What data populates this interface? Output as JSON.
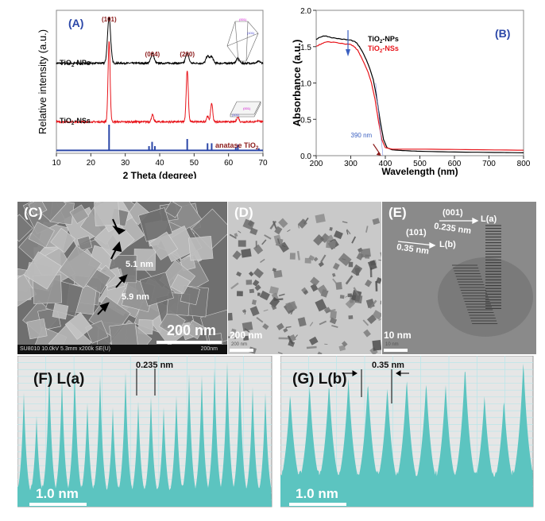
{
  "colors": {
    "black": "#000000",
    "red": "#e8151b",
    "blue": "#2b47a8",
    "label_red": "#8b1a1a",
    "teal": "#5cc4c0",
    "grid": "#b8e6ea"
  },
  "panel_labels": {
    "a": "(A)",
    "b": "(B)",
    "c": "(C)",
    "d": "(D)",
    "e": "(E)",
    "f": "(F) L(a)",
    "g": "(G) L(b)"
  },
  "chart_data": [
    {
      "type": "line",
      "id": "A",
      "title": "(A)",
      "xlabel": "2 Theta (degree)",
      "ylabel": "Relative intensity (a.u.)",
      "xlim": [
        10,
        70
      ],
      "xticks": [
        10,
        20,
        30,
        40,
        50,
        60,
        70
      ],
      "peak_labels": [
        {
          "x": 25.3,
          "text": "(101)"
        },
        {
          "x": 37.9,
          "text": "(004)"
        },
        {
          "x": 48.0,
          "text": "(200)"
        }
      ],
      "crystal_labels": {
        "np_top": "(001)",
        "np_side": "(101)",
        "ns_top": "(001)",
        "ns_side": "(101)"
      },
      "series": [
        {
          "name": "TiO2-NPs",
          "label_main": "TiO",
          "label_sub": "2",
          "label_rest": "-NPs",
          "color": "#000000",
          "offset": 0.63,
          "width_deg": 0.45,
          "peaks": [
            [
              25.3,
              0.32
            ],
            [
              37.9,
              0.07
            ],
            [
              48.0,
              0.07
            ],
            [
              53.9,
              0.05
            ],
            [
              55.1,
              0.045
            ],
            [
              62.7,
              0.035
            ],
            [
              68.8,
              0.012
            ]
          ]
        },
        {
          "name": "TiO2-NSs",
          "label_main": "TiO",
          "label_sub": "2",
          "label_rest": "-NSs",
          "color": "#e8151b",
          "offset": 0.22,
          "width_deg": 0.3,
          "peaks": [
            [
              25.3,
              0.56
            ],
            [
              37.9,
              0.05
            ],
            [
              48.0,
              0.36
            ],
            [
              53.9,
              0.04
            ],
            [
              55.1,
              0.13
            ],
            [
              62.7,
              0.04
            ],
            [
              68.8,
              0.01
            ]
          ]
        }
      ],
      "reference": {
        "name": "anatase TiO2",
        "label_main": "anatase TiO",
        "label_sub": "2",
        "color": "#2b47a8",
        "lines": [
          [
            25.3,
            0.18
          ],
          [
            36.9,
            0.03
          ],
          [
            37.8,
            0.06
          ],
          [
            38.6,
            0.03
          ],
          [
            48.0,
            0.08
          ],
          [
            53.9,
            0.05
          ],
          [
            55.1,
            0.05
          ],
          [
            62.1,
            0.02
          ],
          [
            62.7,
            0.04
          ],
          [
            68.8,
            0.015
          ]
        ]
      }
    },
    {
      "type": "line",
      "id": "B",
      "title": "(B)",
      "xlabel": "Wavelength (nm)",
      "ylabel": "Absorbance (a.u.)",
      "xlim": [
        200,
        800
      ],
      "ylim": [
        0,
        2.0
      ],
      "xticks": [
        200,
        300,
        400,
        500,
        600,
        700,
        800
      ],
      "yticks": [
        "0.0",
        "0.5",
        "1.0",
        "1.5",
        "2.0"
      ],
      "annotation": "390 nm",
      "edge_nm": 390,
      "series": [
        {
          "name": "TiO2-NPs",
          "label_main": "TiO",
          "label_sub": "2",
          "label_rest": "-NPs",
          "color": "#000000",
          "x": [
            200,
            210,
            225,
            250,
            280,
            300,
            315,
            325,
            335,
            345,
            355,
            365,
            375,
            385,
            395,
            405,
            420,
            450,
            500,
            600,
            700,
            800
          ],
          "y": [
            1.6,
            1.63,
            1.65,
            1.62,
            1.6,
            1.59,
            1.56,
            1.5,
            1.42,
            1.32,
            1.2,
            1.05,
            0.8,
            0.48,
            0.22,
            0.11,
            0.08,
            0.07,
            0.06,
            0.05,
            0.045,
            0.04
          ]
        },
        {
          "name": "TiO2-NSs",
          "label_main": "TiO",
          "label_sub": "2",
          "label_rest": "-NSs",
          "color": "#e8151b",
          "x": [
            200,
            210,
            230,
            250,
            280,
            300,
            310,
            320,
            330,
            340,
            350,
            360,
            370,
            380,
            390,
            400,
            420,
            450,
            500,
            600,
            700,
            800
          ],
          "y": [
            1.5,
            1.53,
            1.57,
            1.56,
            1.54,
            1.53,
            1.5,
            1.45,
            1.36,
            1.26,
            1.15,
            1.0,
            0.78,
            0.48,
            0.22,
            0.11,
            0.09,
            0.09,
            0.09,
            0.085,
            0.08,
            0.075
          ]
        }
      ]
    }
  ],
  "micrographs": {
    "c": {
      "scale": "200 nm",
      "footer": "SU8010 10.0kV 5.3mm x200k SE(U)",
      "footer_scale": "200nm",
      "ann1": "5.1 nm",
      "ann2": "5.9 nm"
    },
    "d": {
      "scale": "200 nm",
      "small_scale": "200 nm"
    },
    "e": {
      "scale": "10 nm",
      "small_scale": "10 nm",
      "hkl1": "(001)",
      "d1": "0.235 nm",
      "line1": "L(a)",
      "hkl2": "(101)",
      "d2": "0.35 nm",
      "line2": "L(b)"
    }
  },
  "profiles": {
    "f": {
      "spacing": "0.235 nm",
      "scale": "1.0 nm",
      "peaks": [
        0.78,
        0.62,
        0.93,
        0.88,
        0.94,
        0.71,
        0.9,
        0.68,
        0.92,
        0.72,
        0.75,
        0.68,
        0.76,
        0.91,
        0.9,
        0.95,
        0.99,
        0.92,
        0.82,
        0.78
      ]
    },
    "g": {
      "spacing": "0.35 nm",
      "scale": "1.0 nm",
      "peaks": [
        0.78,
        0.83,
        0.85,
        0.88,
        0.86,
        0.82,
        0.88,
        0.86,
        0.84,
        0.97,
        0.76,
        0.74,
        1.0
      ]
    }
  }
}
